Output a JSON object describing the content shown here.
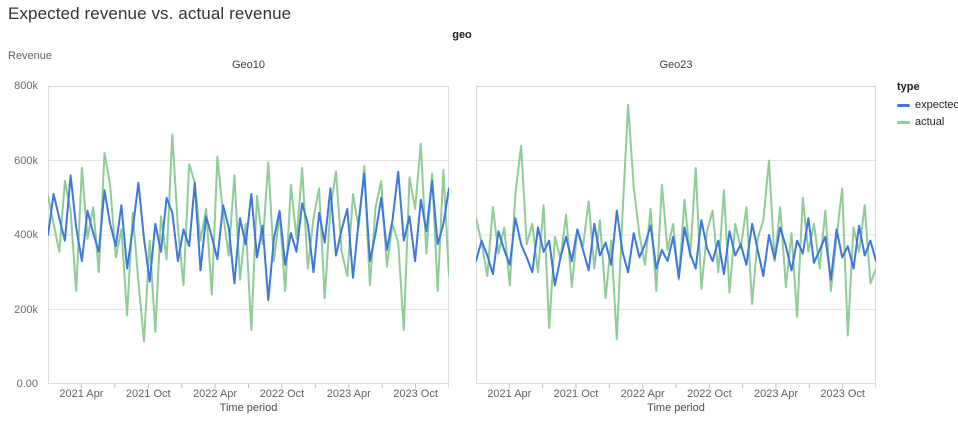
{
  "title": "Expected revenue vs. actual revenue",
  "facet_header": "geo",
  "y_axis_title": "Revenue",
  "x_axis_title": "Time period",
  "legend": {
    "title": "type",
    "items": [
      {
        "label": "expected",
        "color": "#3d78dc"
      },
      {
        "label": "actual",
        "color": "#90cc97"
      }
    ]
  },
  "colors": {
    "grid": "#e4e4e4",
    "plot_border": "#dcdcdc",
    "axis_tick": "#bdbdbd",
    "title_text": "#333333",
    "tick_text": "#616161"
  },
  "axis": {
    "y_domain_k": [
      0,
      800
    ],
    "y_tick_labels": [
      "800k",
      "600k",
      "400k",
      "200k",
      "0.00"
    ],
    "y_grid_values_k": [
      200,
      400,
      600
    ],
    "x_tick_labels": [
      "2021 Apr",
      "2021 Oct",
      "2022 Apr",
      "2022 Oct",
      "2023 Apr",
      "2023 Oct"
    ],
    "x_labeled_months": [
      3,
      9,
      15,
      21,
      27,
      33
    ],
    "x_tick_months": [
      3,
      6,
      9,
      12,
      15,
      18,
      21,
      24,
      27,
      30,
      33,
      36
    ],
    "x_domain_months": 36,
    "x_range": [
      "2021 Jan",
      "2023 Dec"
    ]
  },
  "chart_data": [
    {
      "type": "line",
      "facet": "Geo10",
      "x_start": "2021 Jan",
      "x_end": "2023 Dec",
      "values_unit": "thousands",
      "series": [
        {
          "name": "expected",
          "values": [
            400,
            510,
            445,
            385,
            560,
            420,
            330,
            465,
            405,
            355,
            520,
            430,
            370,
            480,
            310,
            415,
            540,
            390,
            275,
            430,
            355,
            500,
            460,
            330,
            415,
            370,
            540,
            305,
            450,
            395,
            335,
            480,
            420,
            270,
            445,
            375,
            510,
            340,
            425,
            225,
            390,
            465,
            320,
            405,
            355,
            485,
            430,
            300,
            460,
            380,
            525,
            345,
            415,
            470,
            285,
            435,
            565,
            330,
            405,
            500,
            360,
            440,
            570,
            385,
            450,
            330,
            495,
            410,
            545,
            375,
            430,
            525
          ]
        },
        {
          "name": "actual",
          "values": [
            505,
            430,
            355,
            545,
            465,
            250,
            580,
            390,
            475,
            300,
            620,
            535,
            340,
            415,
            185,
            460,
            275,
            115,
            385,
            140,
            450,
            335,
            670,
            420,
            265,
            590,
            540,
            385,
            470,
            240,
            610,
            455,
            345,
            560,
            280,
            430,
            145,
            505,
            375,
            595,
            330,
            455,
            250,
            535,
            390,
            580,
            310,
            445,
            525,
            230,
            470,
            570,
            355,
            290,
            510,
            420,
            585,
            265,
            475,
            545,
            315,
            430,
            380,
            145,
            555,
            470,
            645,
            350,
            565,
            250,
            575,
            290
          ]
        }
      ]
    },
    {
      "type": "line",
      "facet": "Geo23",
      "x_start": "2021 Jan",
      "x_end": "2023 Dec",
      "values_unit": "thousands",
      "series": [
        {
          "name": "expected",
          "values": [
            330,
            385,
            345,
            295,
            410,
            360,
            320,
            445,
            375,
            340,
            300,
            420,
            355,
            385,
            265,
            340,
            395,
            330,
            415,
            360,
            305,
            430,
            345,
            380,
            320,
            465,
            355,
            300,
            405,
            340,
            375,
            425,
            310,
            360,
            330,
            395,
            285,
            420,
            350,
            310,
            440,
            365,
            330,
            385,
            295,
            410,
            345,
            375,
            320,
            430,
            360,
            290,
            400,
            335,
            420,
            370,
            305,
            385,
            350,
            445,
            325,
            360,
            395,
            280,
            415,
            340,
            370,
            310,
            425,
            345,
            385,
            330
          ]
        },
        {
          "name": "actual",
          "values": [
            445,
            380,
            290,
            475,
            350,
            420,
            265,
            510,
            640,
            375,
            430,
            300,
            480,
            150,
            395,
            335,
            455,
            260,
            415,
            370,
            490,
            310,
            440,
            230,
            385,
            120,
            455,
            750,
            530,
            400,
            320,
            470,
            250,
            535,
            360,
            430,
            280,
            495,
            340,
            580,
            255,
            410,
            465,
            300,
            520,
            245,
            430,
            365,
            475,
            215,
            390,
            440,
            600,
            330,
            475,
            260,
            405,
            180,
            500,
            355,
            430,
            310,
            465,
            250,
            395,
            525,
            130,
            420,
            355,
            480,
            270,
            310
          ]
        }
      ]
    }
  ]
}
